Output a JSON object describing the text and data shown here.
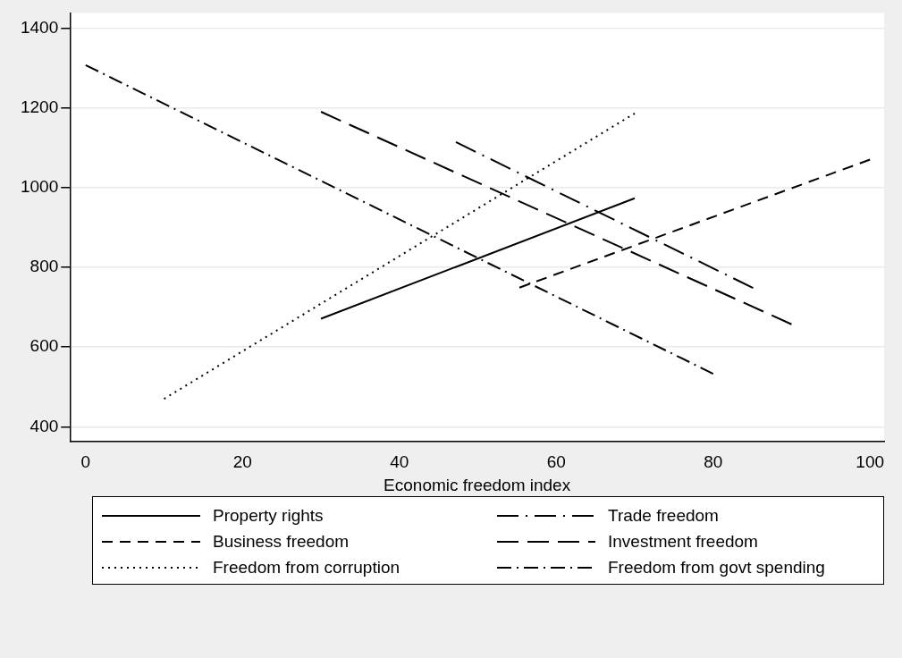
{
  "chart_data": {
    "type": "line",
    "xlabel": "Economic freedom index",
    "xlim": [
      -2,
      101.8
    ],
    "xticks": [
      0,
      20,
      40,
      60,
      80,
      100
    ],
    "ylim": [
      364,
      1438
    ],
    "yticks": [
      400,
      600,
      800,
      1000,
      1200,
      1400
    ],
    "grid": "y",
    "legend": "bottom",
    "marker": "none",
    "series": [
      {
        "name": "Property rights",
        "color": "#000000",
        "line_style": "solid",
        "x": [
          30,
          70
        ],
        "values": [
          671,
          973
        ]
      },
      {
        "name": "Business freedom",
        "color": "#000000",
        "line_style": "dashed",
        "x": [
          55.3,
          100
        ],
        "values": [
          749,
          1070
        ]
      },
      {
        "name": "Freedom from corruption",
        "color": "#000000",
        "line_style": "dotted",
        "x": [
          10,
          70
        ],
        "values": [
          470,
          1186
        ]
      },
      {
        "name": "Trade freedom",
        "color": "#000000",
        "line_style": "longdashdot",
        "x": [
          47.2,
          85.1
        ],
        "values": [
          1114,
          748
        ]
      },
      {
        "name": "Investment freedom",
        "color": "#000000",
        "line_style": "longdash",
        "x": [
          30,
          90
        ],
        "values": [
          1190,
          657
        ]
      },
      {
        "name": "Freedom from govt spending",
        "color": "#000000",
        "line_style": "dashdot",
        "x": [
          0,
          80
        ],
        "values": [
          1307,
          533
        ]
      }
    ]
  }
}
